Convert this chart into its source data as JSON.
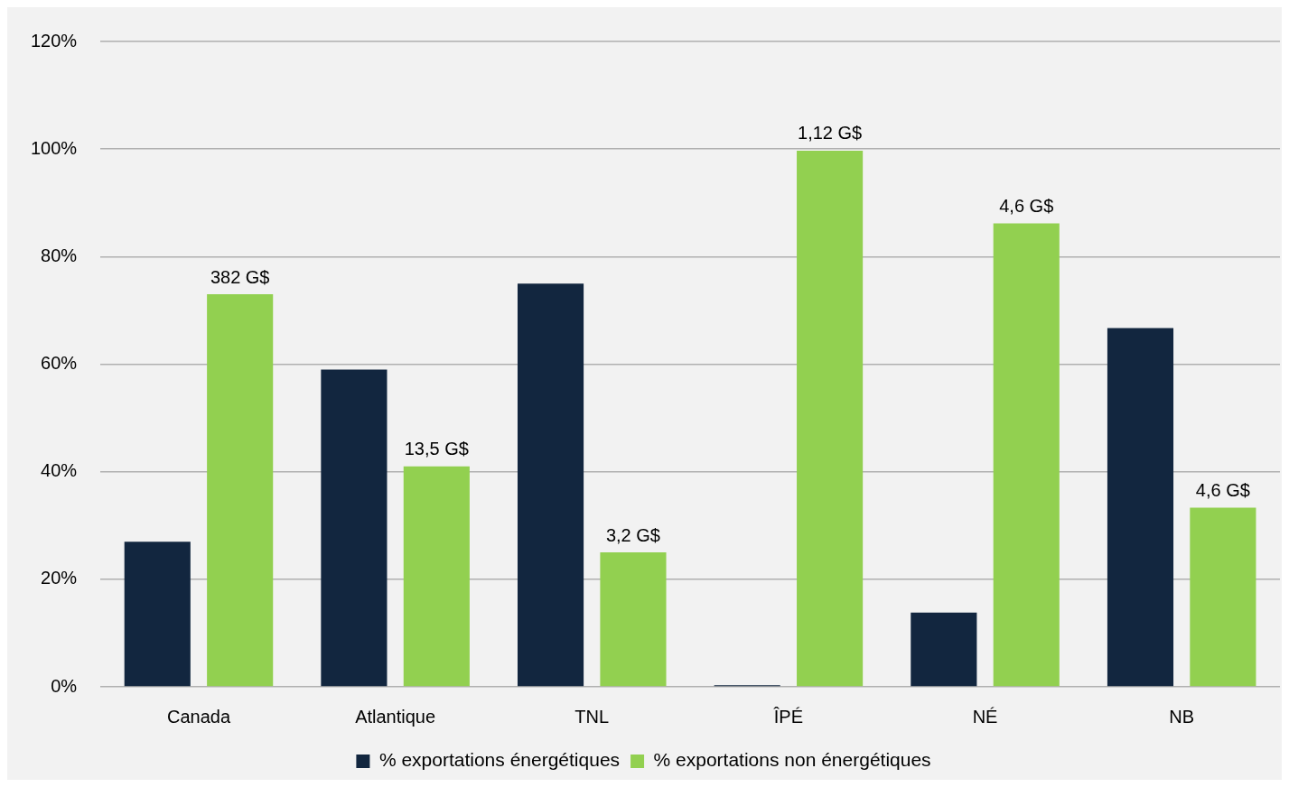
{
  "chart_data": {
    "type": "bar",
    "categories": [
      "Canada",
      "Atlantique",
      "TNL",
      "ÎPÉ",
      "NÉ",
      "NB"
    ],
    "series": [
      {
        "name": "% exportations énergétiques",
        "color": "#12263f",
        "values": [
          27,
          59,
          75,
          0.3,
          13.8,
          66.7
        ]
      },
      {
        "name": "% exportations non énergétiques",
        "color": "#92d050",
        "values": [
          73,
          41,
          25,
          99.7,
          86.2,
          33.3
        ]
      }
    ],
    "annotations": [
      "382 G$",
      "13,5 G$",
      "3,2 G$",
      "1,12 G$",
      "4,6 G$",
      "4,6 G$"
    ],
    "ylim": [
      0,
      120
    ],
    "yticks": [
      {
        "value": 0,
        "label": "0%"
      },
      {
        "value": 20,
        "label": "20%"
      },
      {
        "value": 40,
        "label": "40%"
      },
      {
        "value": 60,
        "label": "60%"
      },
      {
        "value": 80,
        "label": "80%"
      },
      {
        "value": 100,
        "label": "100%"
      },
      {
        "value": 120,
        "label": "120%"
      }
    ],
    "grid": "y",
    "legend": "bottom"
  }
}
